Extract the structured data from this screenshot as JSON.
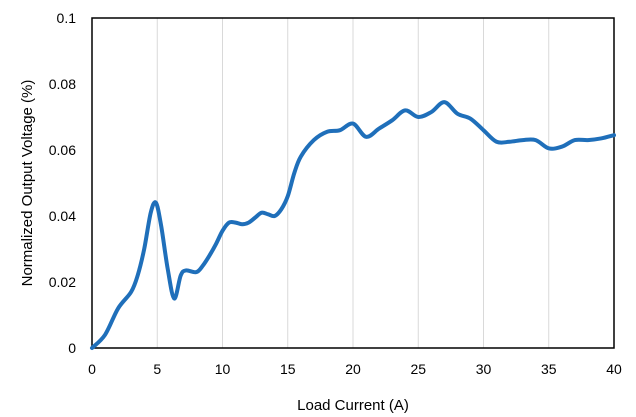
{
  "chart_data": {
    "type": "line",
    "title": "",
    "xlabel": "Load Current (A)",
    "ylabel": "Normalized Output Voltage (%)",
    "xlim": [
      0,
      40
    ],
    "ylim": [
      0,
      0.1
    ],
    "xticks": [
      0,
      5,
      10,
      15,
      20,
      25,
      30,
      35,
      40
    ],
    "xtick_labels": [
      "0",
      "5",
      "10",
      "15",
      "20",
      "25",
      "30",
      "35",
      "40"
    ],
    "yticks": [
      0,
      0.02,
      0.04,
      0.06,
      0.08,
      0.1
    ],
    "ytick_labels": [
      "0",
      "0.02",
      "0.04",
      "0.06",
      "0.08",
      "0.1"
    ],
    "grid": "vertical",
    "legend": "none",
    "line_color": "#1f6fba",
    "grid_color": "#d9d9d9",
    "series": [
      {
        "x": [
          0,
          1,
          2,
          3,
          3.5,
          4,
          4.5,
          4.9,
          5.3,
          5.8,
          6.3,
          6.8,
          7.2,
          8,
          8.5,
          9,
          9.5,
          10,
          10.5,
          11,
          11.5,
          12,
          12.5,
          13,
          13.5,
          14,
          14.5,
          15,
          15.5,
          16,
          17,
          18,
          19,
          20,
          21,
          22,
          23,
          24,
          25,
          26,
          27,
          28,
          29,
          30,
          31,
          32,
          33,
          34,
          35,
          36,
          37,
          38,
          39,
          40
        ],
        "y": [
          0,
          0.004,
          0.012,
          0.017,
          0.022,
          0.03,
          0.041,
          0.044,
          0.037,
          0.024,
          0.015,
          0.022,
          0.0235,
          0.023,
          0.025,
          0.028,
          0.0315,
          0.0355,
          0.038,
          0.038,
          0.0375,
          0.038,
          0.0395,
          0.041,
          0.0405,
          0.04,
          0.042,
          0.046,
          0.053,
          0.058,
          0.063,
          0.0655,
          0.066,
          0.068,
          0.064,
          0.0665,
          0.069,
          0.072,
          0.07,
          0.0715,
          0.0745,
          0.071,
          0.0695,
          0.066,
          0.0625,
          0.0625,
          0.063,
          0.063,
          0.0605,
          0.061,
          0.063,
          0.063,
          0.0635,
          0.0645
        ]
      }
    ]
  }
}
